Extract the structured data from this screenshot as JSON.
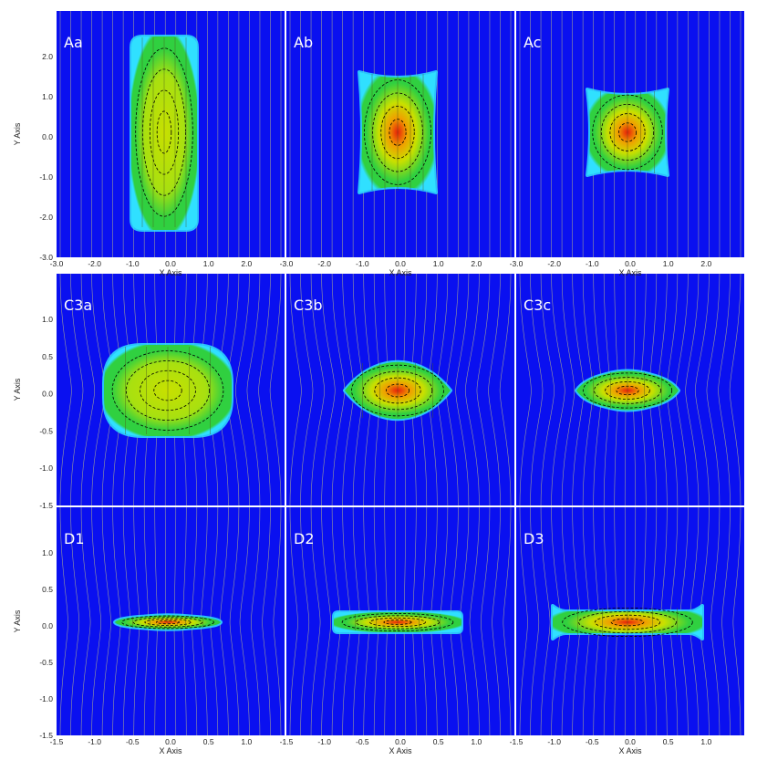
{
  "colors": {
    "background": "#0a10f0",
    "field_line": "#9a9a9a",
    "contour": "#000000",
    "hot": "#e81e0a",
    "warm": "#f0a000",
    "mid": "#c8e000",
    "cool": "#30d040",
    "edge": "#30e0ff"
  },
  "axis_titles": {
    "x": "X Axis",
    "y": "Y Axis"
  },
  "rows": [
    {
      "id": "row-A",
      "y_ticks": [
        "2.0",
        "1.0",
        "0.0",
        "-1.0",
        "-2.0",
        "-3.0"
      ],
      "x_ticks": [
        [
          "-3.0",
          "-2.0",
          "-1.0",
          "0.0",
          "1.0",
          "2.0"
        ],
        [
          "-3.0",
          "-2.0",
          "-1.0",
          "0.0",
          "1.0",
          "2.0"
        ],
        [
          "-3.0",
          "-2.0",
          "-1.0",
          "0.0",
          "1.0",
          "2.0"
        ]
      ],
      "panels": [
        {
          "label": "Aa",
          "shape": "tall-rect",
          "peak": "mid"
        },
        {
          "label": "Ab",
          "shape": "pinched-rect",
          "peak": "hot"
        },
        {
          "label": "Ac",
          "shape": "pinched-rect-small",
          "peak": "hot"
        }
      ]
    },
    {
      "id": "row-C3",
      "y_ticks": [
        "1.0",
        "0.5",
        "0.0",
        "-0.5",
        "-1.0",
        "-1.5"
      ],
      "x_ticks": [],
      "panels": [
        {
          "label": "C3a",
          "shape": "round-rect",
          "peak": "mid"
        },
        {
          "label": "C3b",
          "shape": "lens",
          "peak": "hot"
        },
        {
          "label": "C3c",
          "shape": "lens-small",
          "peak": "hot"
        }
      ]
    },
    {
      "id": "row-D",
      "y_ticks": [
        "1.0",
        "0.5",
        "0.0",
        "-0.5",
        "-1.0",
        "-1.5"
      ],
      "x_ticks": [
        [
          "-1.5",
          "-1.0",
          "-0.5",
          "0.0",
          "0.5",
          "1.0"
        ],
        [
          "-1.5",
          "-1.0",
          "-0.5",
          "0.0",
          "0.5",
          "1.0"
        ],
        [
          "-1.5",
          "-1.0",
          "-0.5",
          "0.0",
          "0.5",
          "1.0"
        ]
      ],
      "panels": [
        {
          "label": "D1",
          "shape": "spindle",
          "peak": "hot"
        },
        {
          "label": "D2",
          "shape": "bar",
          "peak": "hot"
        },
        {
          "label": "D3",
          "shape": "bar-wide",
          "peak": "hot"
        }
      ]
    }
  ]
}
